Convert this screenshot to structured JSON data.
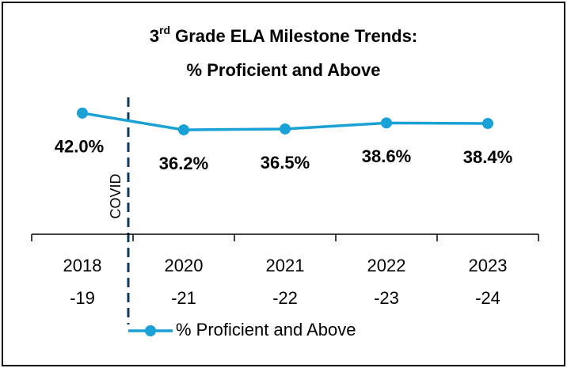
{
  "chart_data": {
    "type": "line",
    "title": {
      "ordinal_number": "3",
      "ordinal_suffix": "rd",
      "line1": "Grade ELA Milestone Trends:",
      "line2": "% Proficient and Above"
    },
    "categories": [
      [
        "2018",
        "-19"
      ],
      [
        "2020",
        "-21"
      ],
      [
        "2021",
        "-22"
      ],
      [
        "2022",
        "-23"
      ],
      [
        "2023",
        "-24"
      ]
    ],
    "series": [
      {
        "name": "% Proficient and Above",
        "color": "#1aa1d6",
        "values": [
          42.0,
          36.2,
          36.5,
          38.6,
          38.4
        ],
        "value_labels": [
          "42.0%",
          "36.2%",
          "36.5%",
          "38.6%",
          "38.4%"
        ]
      }
    ],
    "ylim": [
      0,
      45
    ],
    "annotations": [
      {
        "text": "COVID"
      }
    ]
  }
}
